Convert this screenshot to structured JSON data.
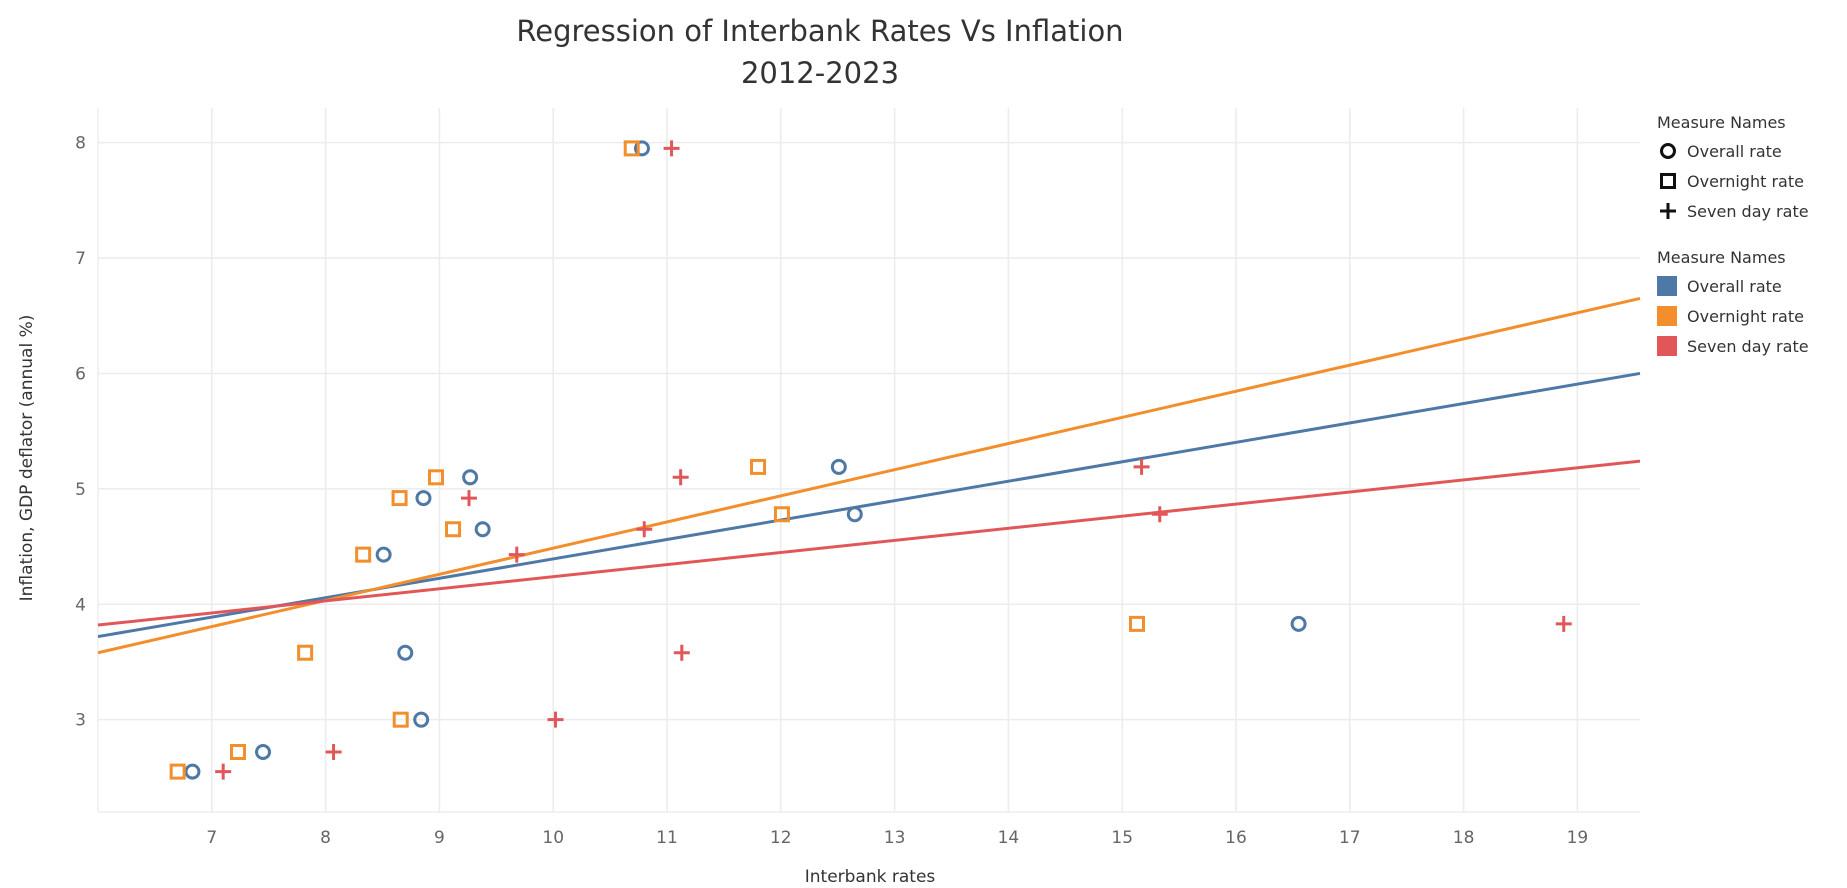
{
  "chart_data": {
    "type": "scatter",
    "title": "Regression of Interbank Rates Vs Inflation",
    "subtitle": "2012-2023",
    "xlabel": "Interbank rates",
    "ylabel": "Inflation, GDP deflator (annual %)",
    "xlim": [
      6.0,
      19.55
    ],
    "ylim": [
      2.2,
      8.3
    ],
    "xticks": [
      7,
      8,
      9,
      10,
      11,
      12,
      13,
      14,
      15,
      16,
      17,
      18,
      19
    ],
    "yticks": [
      3,
      4,
      5,
      6,
      7,
      8
    ],
    "grid": true,
    "legend_placement": "right",
    "series": [
      {
        "name": "Overall rate",
        "color": "#4e79a7",
        "marker": "circle",
        "points": [
          {
            "x": 6.83,
            "y": 2.55
          },
          {
            "x": 7.45,
            "y": 2.72
          },
          {
            "x": 8.84,
            "y": 3.0
          },
          {
            "x": 8.7,
            "y": 3.58
          },
          {
            "x": 8.51,
            "y": 4.43
          },
          {
            "x": 8.86,
            "y": 4.92
          },
          {
            "x": 9.27,
            "y": 5.1
          },
          {
            "x": 9.38,
            "y": 4.65
          },
          {
            "x": 10.78,
            "y": 7.95
          },
          {
            "x": 12.51,
            "y": 5.19
          },
          {
            "x": 12.65,
            "y": 4.78
          },
          {
            "x": 16.55,
            "y": 3.83
          }
        ],
        "trend": {
          "x": [
            6.0,
            19.55
          ],
          "y": [
            3.72,
            6.0
          ]
        }
      },
      {
        "name": "Overnight rate",
        "color": "#f28e2b",
        "marker": "square",
        "points": [
          {
            "x": 6.7,
            "y": 2.55
          },
          {
            "x": 7.23,
            "y": 2.72
          },
          {
            "x": 8.66,
            "y": 3.0
          },
          {
            "x": 7.82,
            "y": 3.58
          },
          {
            "x": 8.33,
            "y": 4.43
          },
          {
            "x": 8.65,
            "y": 4.92
          },
          {
            "x": 8.97,
            "y": 5.1
          },
          {
            "x": 9.12,
            "y": 4.65
          },
          {
            "x": 10.69,
            "y": 7.95
          },
          {
            "x": 11.8,
            "y": 5.19
          },
          {
            "x": 12.01,
            "y": 4.78
          },
          {
            "x": 15.13,
            "y": 3.83
          }
        ],
        "trend": {
          "x": [
            6.0,
            19.55
          ],
          "y": [
            3.58,
            6.65
          ]
        }
      },
      {
        "name": "Seven day rate",
        "color": "#e15759",
        "marker": "plus",
        "points": [
          {
            "x": 7.1,
            "y": 2.55
          },
          {
            "x": 8.07,
            "y": 2.72
          },
          {
            "x": 10.02,
            "y": 3.0
          },
          {
            "x": 11.13,
            "y": 3.58
          },
          {
            "x": 9.68,
            "y": 4.43
          },
          {
            "x": 9.26,
            "y": 4.92
          },
          {
            "x": 11.12,
            "y": 5.1
          },
          {
            "x": 10.8,
            "y": 4.65
          },
          {
            "x": 11.04,
            "y": 7.95
          },
          {
            "x": 15.17,
            "y": 5.19
          },
          {
            "x": 15.33,
            "y": 4.78
          },
          {
            "x": 18.88,
            "y": 3.83
          }
        ],
        "trend": {
          "x": [
            6.0,
            19.55
          ],
          "y": [
            3.82,
            5.24
          ]
        }
      }
    ]
  },
  "legend": {
    "shape_title": "Measure Names",
    "color_title": "Measure Names",
    "items": [
      {
        "label": "Overall rate",
        "marker": "circle",
        "color": "#4e79a7"
      },
      {
        "label": "Overnight rate",
        "marker": "square",
        "color": "#f28e2b"
      },
      {
        "label": "Seven day rate",
        "marker": "plus",
        "color": "#e15759"
      }
    ]
  }
}
